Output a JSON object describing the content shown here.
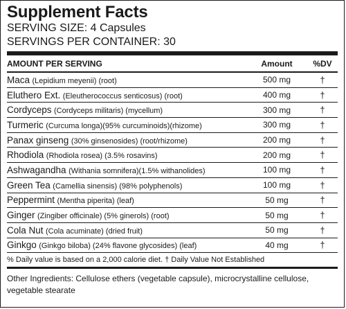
{
  "title": "Supplement Facts",
  "serving_size": "SERVING SIZE: 4 Capsules",
  "servings_per_container": "SERVINGS PER CONTAINER: 30",
  "header": {
    "amount_per_serving": "AMOUNT PER SERVING",
    "amount": "Amount",
    "dv": "%DV"
  },
  "rows": [
    {
      "name": "Maca",
      "desc": "(Lepidium meyenii) (root)",
      "amount": "500 mg",
      "dv": "†"
    },
    {
      "name": "Eluthero Ext.",
      "desc": "(Eleutherococcus senticosus) (root)",
      "amount": "400 mg",
      "dv": "†"
    },
    {
      "name": "Cordyceps",
      "desc": "(Cordyceps militaris) (mycellum)",
      "amount": "300 mg",
      "dv": "†"
    },
    {
      "name": "Turmeric",
      "desc": "(Curcuma longa)(95% curcuminoids)(rhizome)",
      "amount": "300 mg",
      "dv": "†"
    },
    {
      "name": "Panax ginseng",
      "desc": "(30% ginsenosides) (root/rhizome)",
      "amount": "200 mg",
      "dv": "†"
    },
    {
      "name": "Rhodiola",
      "desc": "(Rhodiola rosea) (3.5% rosavins)",
      "amount": "200 mg",
      "dv": "†"
    },
    {
      "name": "Ashwagandha",
      "desc": "(Withania somnifera)(1.5% withanolides)",
      "amount": "100 mg",
      "dv": "†"
    },
    {
      "name": "Green Tea",
      "desc": "(Camellia sinensis) (98% polyphenols)",
      "amount": "100 mg",
      "dv": "†"
    },
    {
      "name": "Peppermint",
      "desc": "(Mentha piperita) (leaf)",
      "amount": "50 mg",
      "dv": "†"
    },
    {
      "name": "Ginger",
      "desc": "(Zingiber officinale) (5% ginerols) (root)",
      "amount": "50 mg",
      "dv": "†"
    },
    {
      "name": "Cola Nut",
      "desc": "(Cola acuminate) (dried fruit)",
      "amount": "50 mg",
      "dv": "†"
    },
    {
      "name": "Ginkgo",
      "desc": "(Ginkgo biloba) (24% flavone glycosides) (leaf)",
      "amount": "40 mg",
      "dv": "†"
    }
  ],
  "footnote": "% Daily value is based on a 2,000 calorie diet. † Daily Value Not Established",
  "other_ingredients": "Other Ingredients: Cellulose ethers (vegetable capsule), microcrystalline cellulose, vegetable stearate"
}
